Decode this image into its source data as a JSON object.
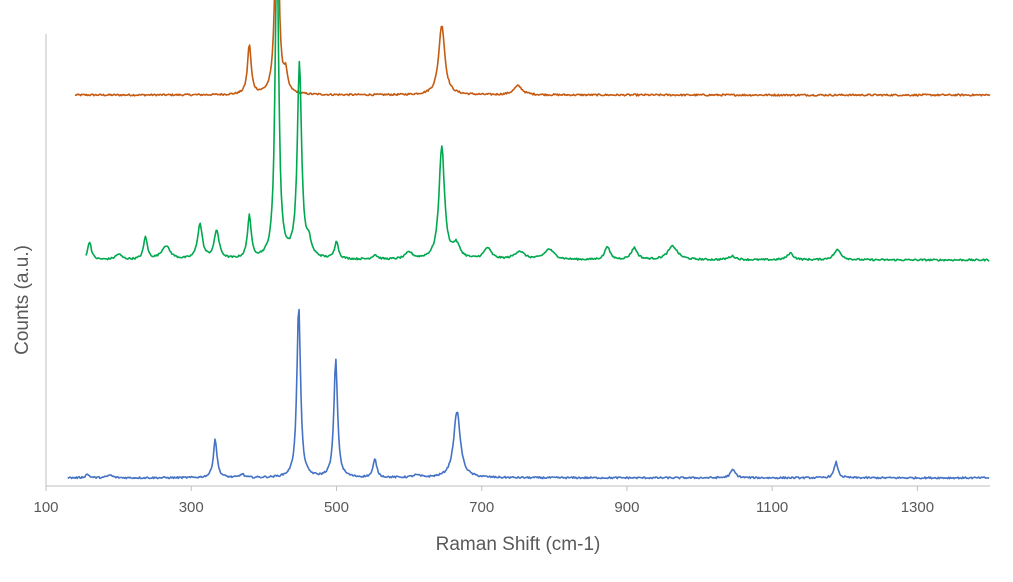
{
  "chart_data": {
    "type": "line",
    "title": "",
    "xlabel": "Raman Shift (cm-1)",
    "ylabel": "Counts (a.u.)",
    "xlim": [
      100,
      1400
    ],
    "x_ticks": [
      100,
      300,
      500,
      700,
      900,
      1100,
      1300
    ],
    "x_tick_labels": [
      "100",
      "300",
      "500",
      "700",
      "900",
      "1100",
      "1300"
    ],
    "y_ticks_shown": false,
    "grid": false,
    "legend": "none",
    "series": [
      {
        "color": "#c55a11",
        "baseline": 0.865,
        "x_start": 140,
        "x_end": 1400,
        "peaks": [
          {
            "x": 380,
            "height": 0.11,
            "width": 3
          },
          {
            "x": 418,
            "height": 0.485,
            "width": 3
          },
          {
            "x": 430,
            "height": 0.04,
            "width": 3
          },
          {
            "x": 645,
            "height": 0.155,
            "width": 5
          },
          {
            "x": 750,
            "height": 0.02,
            "width": 7
          }
        ]
      },
      {
        "color": "#00a84f",
        "baseline": 0.5,
        "x_start": 155,
        "x_end": 1400,
        "peaks": [
          {
            "x": 160,
            "height": 0.04,
            "width": 3
          },
          {
            "x": 200,
            "height": 0.012,
            "width": 5
          },
          {
            "x": 237,
            "height": 0.05,
            "width": 3
          },
          {
            "x": 265,
            "height": 0.03,
            "width": 7
          },
          {
            "x": 312,
            "height": 0.077,
            "width": 4
          },
          {
            "x": 335,
            "height": 0.063,
            "width": 4
          },
          {
            "x": 380,
            "height": 0.095,
            "width": 3
          },
          {
            "x": 418,
            "height": 0.7,
            "width": 3
          },
          {
            "x": 449,
            "height": 0.43,
            "width": 3.5
          },
          {
            "x": 462,
            "height": 0.03,
            "width": 4
          },
          {
            "x": 500,
            "height": 0.04,
            "width": 3
          },
          {
            "x": 553,
            "height": 0.01,
            "width": 4
          },
          {
            "x": 600,
            "height": 0.015,
            "width": 6
          },
          {
            "x": 645,
            "height": 0.25,
            "width": 4.5
          },
          {
            "x": 665,
            "height": 0.03,
            "width": 6
          },
          {
            "x": 708,
            "height": 0.025,
            "width": 6
          },
          {
            "x": 752,
            "height": 0.018,
            "width": 8
          },
          {
            "x": 793,
            "height": 0.023,
            "width": 8
          },
          {
            "x": 873,
            "height": 0.03,
            "width": 4
          },
          {
            "x": 910,
            "height": 0.026,
            "width": 5
          },
          {
            "x": 963,
            "height": 0.03,
            "width": 8
          },
          {
            "x": 1045,
            "height": 0.008,
            "width": 6
          },
          {
            "x": 1125,
            "height": 0.015,
            "width": 5
          },
          {
            "x": 1190,
            "height": 0.022,
            "width": 6
          }
        ]
      },
      {
        "color": "#4472c4",
        "baseline": 0.018,
        "x_start": 130,
        "x_end": 1400,
        "peaks": [
          {
            "x": 157,
            "height": 0.008,
            "width": 3
          },
          {
            "x": 188,
            "height": 0.006,
            "width": 4
          },
          {
            "x": 333,
            "height": 0.085,
            "width": 3
          },
          {
            "x": 370,
            "height": 0.008,
            "width": 3
          },
          {
            "x": 448,
            "height": 0.38,
            "width": 3
          },
          {
            "x": 499,
            "height": 0.26,
            "width": 3
          },
          {
            "x": 553,
            "height": 0.04,
            "width": 3
          },
          {
            "x": 610,
            "height": 0.005,
            "width": 6
          },
          {
            "x": 666,
            "height": 0.147,
            "width": 5.5
          },
          {
            "x": 1046,
            "height": 0.018,
            "width": 4
          },
          {
            "x": 1188,
            "height": 0.035,
            "width": 3
          }
        ]
      }
    ]
  }
}
